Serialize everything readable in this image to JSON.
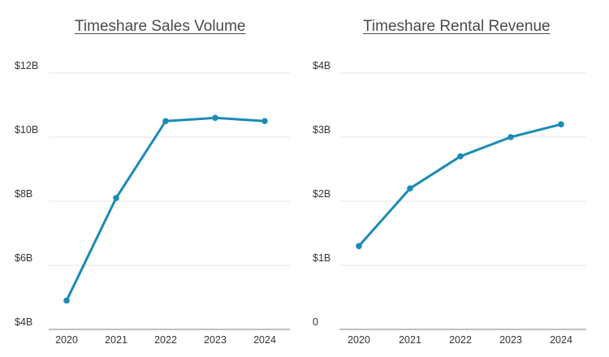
{
  "colors": {
    "line": "#1b8bb5",
    "grid": "#e6e6e6",
    "axis": "#999999",
    "text": "#333333"
  },
  "chart_data": [
    {
      "type": "line",
      "title": "Timeshare Sales Volume",
      "xlabel": "",
      "ylabel": "",
      "x": [
        "2020",
        "2021",
        "2022",
        "2023",
        "2024"
      ],
      "series": [
        {
          "values": [
            4.9,
            8.1,
            10.5,
            10.6,
            10.5
          ]
        }
      ],
      "ylim": [
        4,
        12
      ],
      "yticks": [
        4,
        6,
        8,
        10,
        12
      ],
      "ytick_labels": [
        "$4B",
        "$6B",
        "$8B",
        "$10B",
        "$12B"
      ],
      "grid": true,
      "legend": "none"
    },
    {
      "type": "line",
      "title": "Timeshare Rental Revenue",
      "xlabel": "",
      "ylabel": "",
      "x": [
        "2020",
        "2021",
        "2022",
        "2023",
        "2024"
      ],
      "series": [
        {
          "values": [
            1.3,
            2.2,
            2.7,
            3.0,
            3.2
          ]
        }
      ],
      "ylim": [
        0,
        4
      ],
      "yticks": [
        0,
        1,
        2,
        3,
        4
      ],
      "ytick_labels": [
        "0",
        "$1B",
        "$2B",
        "$3B",
        "$4B"
      ],
      "grid": true,
      "legend": "none"
    }
  ]
}
